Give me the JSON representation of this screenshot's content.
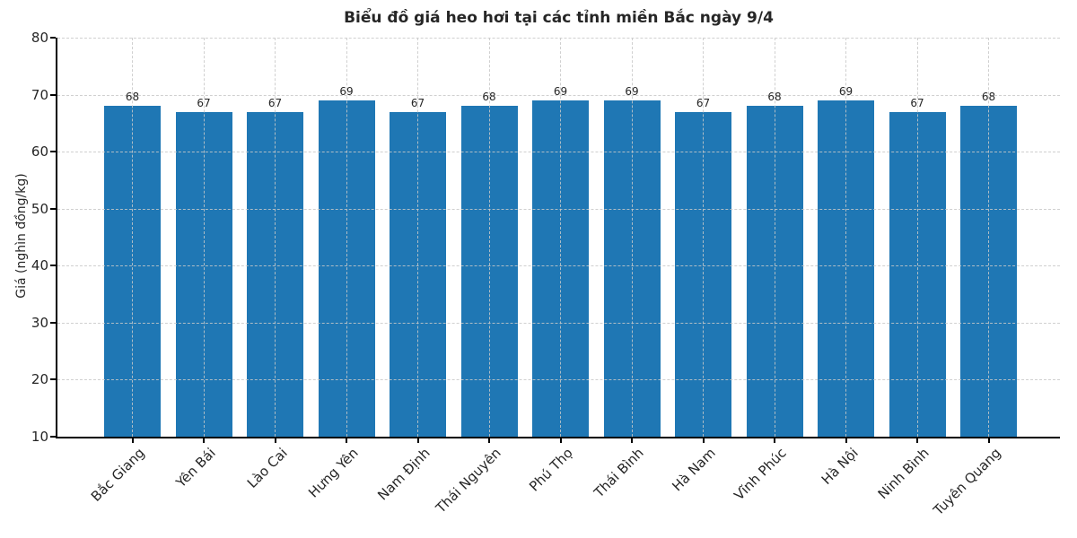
{
  "chart_data": {
    "type": "bar",
    "title": "Biểu đồ giá heo hơi tại các tỉnh miền Bắc ngày 9/4",
    "xlabel": "",
    "ylabel": "Giá (nghìn đồng/kg)",
    "categories": [
      "Bắc Giang",
      "Yên Bái",
      "Lào Cai",
      "Hưng Yên",
      "Nam Định",
      "Thái Nguyên",
      "Phú Thọ",
      "Thái Bình",
      "Hà Nam",
      "Vĩnh Phúc",
      "Hà Nội",
      "Ninh Bình",
      "Tuyên Quang"
    ],
    "values": [
      68,
      67,
      67,
      69,
      67,
      68,
      69,
      69,
      67,
      68,
      69,
      67,
      68
    ],
    "value_labels": [
      "68",
      "67",
      "67",
      "69",
      "67",
      "68",
      "69",
      "69",
      "67",
      "68",
      "69",
      "67",
      "68"
    ],
    "ylim": [
      10,
      80
    ],
    "yticks": [
      10,
      20,
      30,
      40,
      50,
      60,
      70,
      80
    ],
    "bar_color": "#1f77b4",
    "grid": "dashed, horizontal and vertical, drawn over bars",
    "legend": "none"
  }
}
